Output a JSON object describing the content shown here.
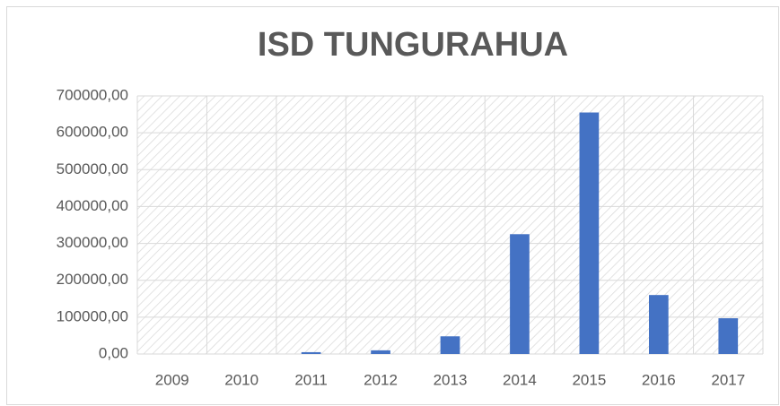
{
  "chart_data": {
    "type": "bar",
    "title": "ISD TUNGURAHUA",
    "categories": [
      "2009",
      "2010",
      "2011",
      "2012",
      "2013",
      "2014",
      "2015",
      "2016",
      "2017"
    ],
    "values": [
      0,
      0,
      5000,
      10000,
      48000,
      325000,
      655000,
      160000,
      97000
    ],
    "color": "#4472c4",
    "ylim": [
      0,
      700000
    ],
    "yticks": [
      {
        "value": 0,
        "label": "0,00"
      },
      {
        "value": 100000,
        "label": "100000,00"
      },
      {
        "value": 200000,
        "label": "200000,00"
      },
      {
        "value": 300000,
        "label": "300000,00"
      },
      {
        "value": 400000,
        "label": "400000,00"
      },
      {
        "value": 500000,
        "label": "500000,00"
      },
      {
        "value": 600000,
        "label": "600000,00"
      },
      {
        "value": 700000,
        "label": "700000,00"
      }
    ],
    "grid": true
  }
}
